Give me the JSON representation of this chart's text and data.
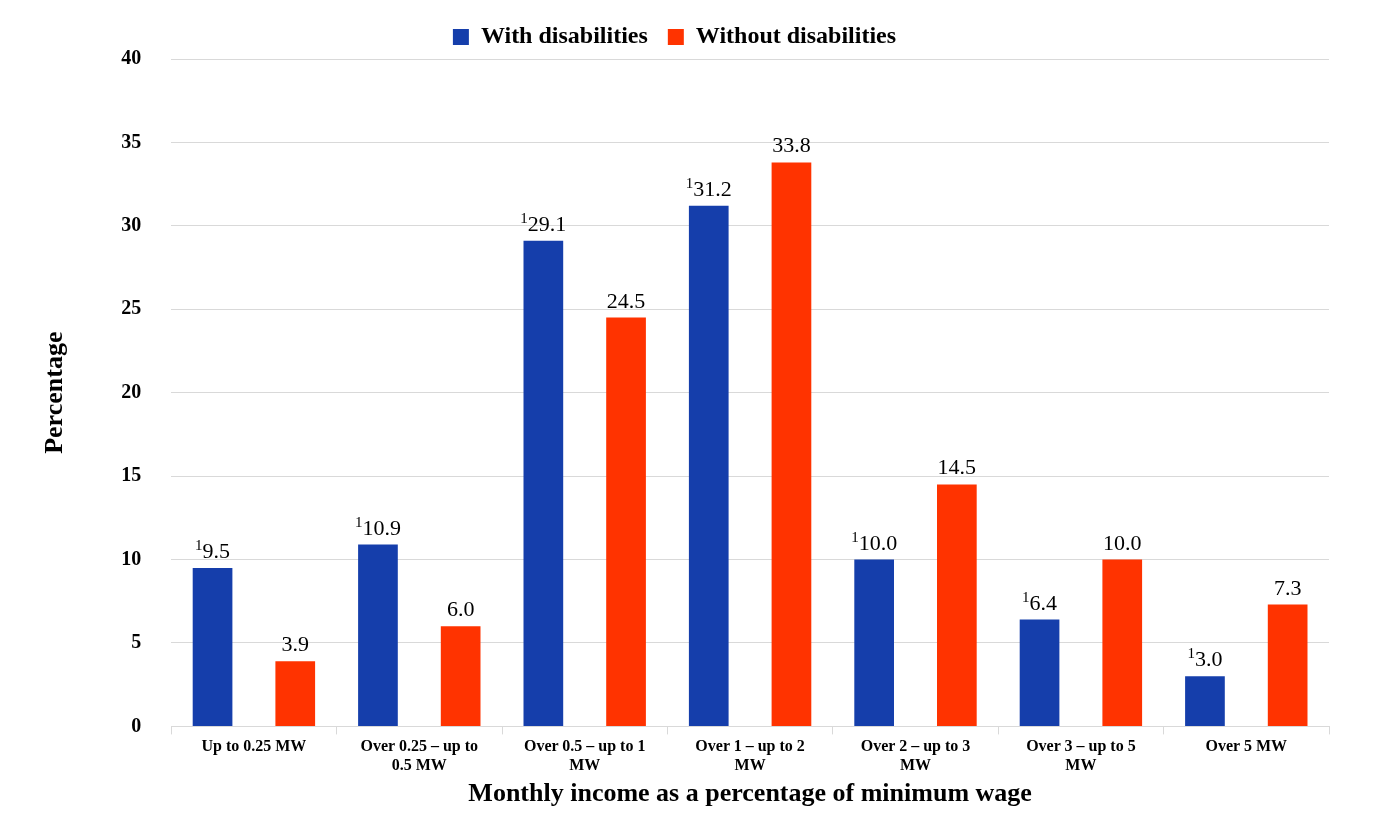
{
  "chart_data": {
    "type": "bar",
    "xlabel": "Monthly income as a percentage of minimum wage",
    "ylabel": "Percentage",
    "categories": [
      "Up to 0.25 MW",
      "Over 0.25 – up to 0.5 MW",
      "Over 0.5 – up to 1 MW",
      "Over 1 – up to 2 MW",
      "Over 2 – up to 3 MW",
      "Over 3 – up to 5 MW",
      "Over 5 MW"
    ],
    "series": [
      {
        "name": "With disabilities",
        "color": "#153eab",
        "values": [
          9.5,
          10.9,
          29.1,
          31.2,
          10.0,
          6.4,
          3.0
        ],
        "value_labels": [
          "$^{1}$9.5",
          "$^{1}$10.9",
          "$^{1}$29.1",
          "$^{1}$31.2",
          "$^{1}$10.0",
          "$^{1}$6.4",
          "$^{1}$3.0"
        ]
      },
      {
        "name": "Without disabilities",
        "color": "#ff3300",
        "values": [
          3.9,
          6.0,
          24.5,
          33.8,
          14.5,
          10.0,
          7.3
        ],
        "value_labels": [
          "3.9",
          "6.0",
          "24.5",
          "33.8",
          "14.5",
          "10.0",
          "7.3"
        ]
      }
    ],
    "ylim": [
      0,
      40
    ],
    "yticks": [
      0,
      5,
      10,
      15,
      20,
      25,
      30,
      35,
      40
    ],
    "grid": "y",
    "legend": "top"
  }
}
